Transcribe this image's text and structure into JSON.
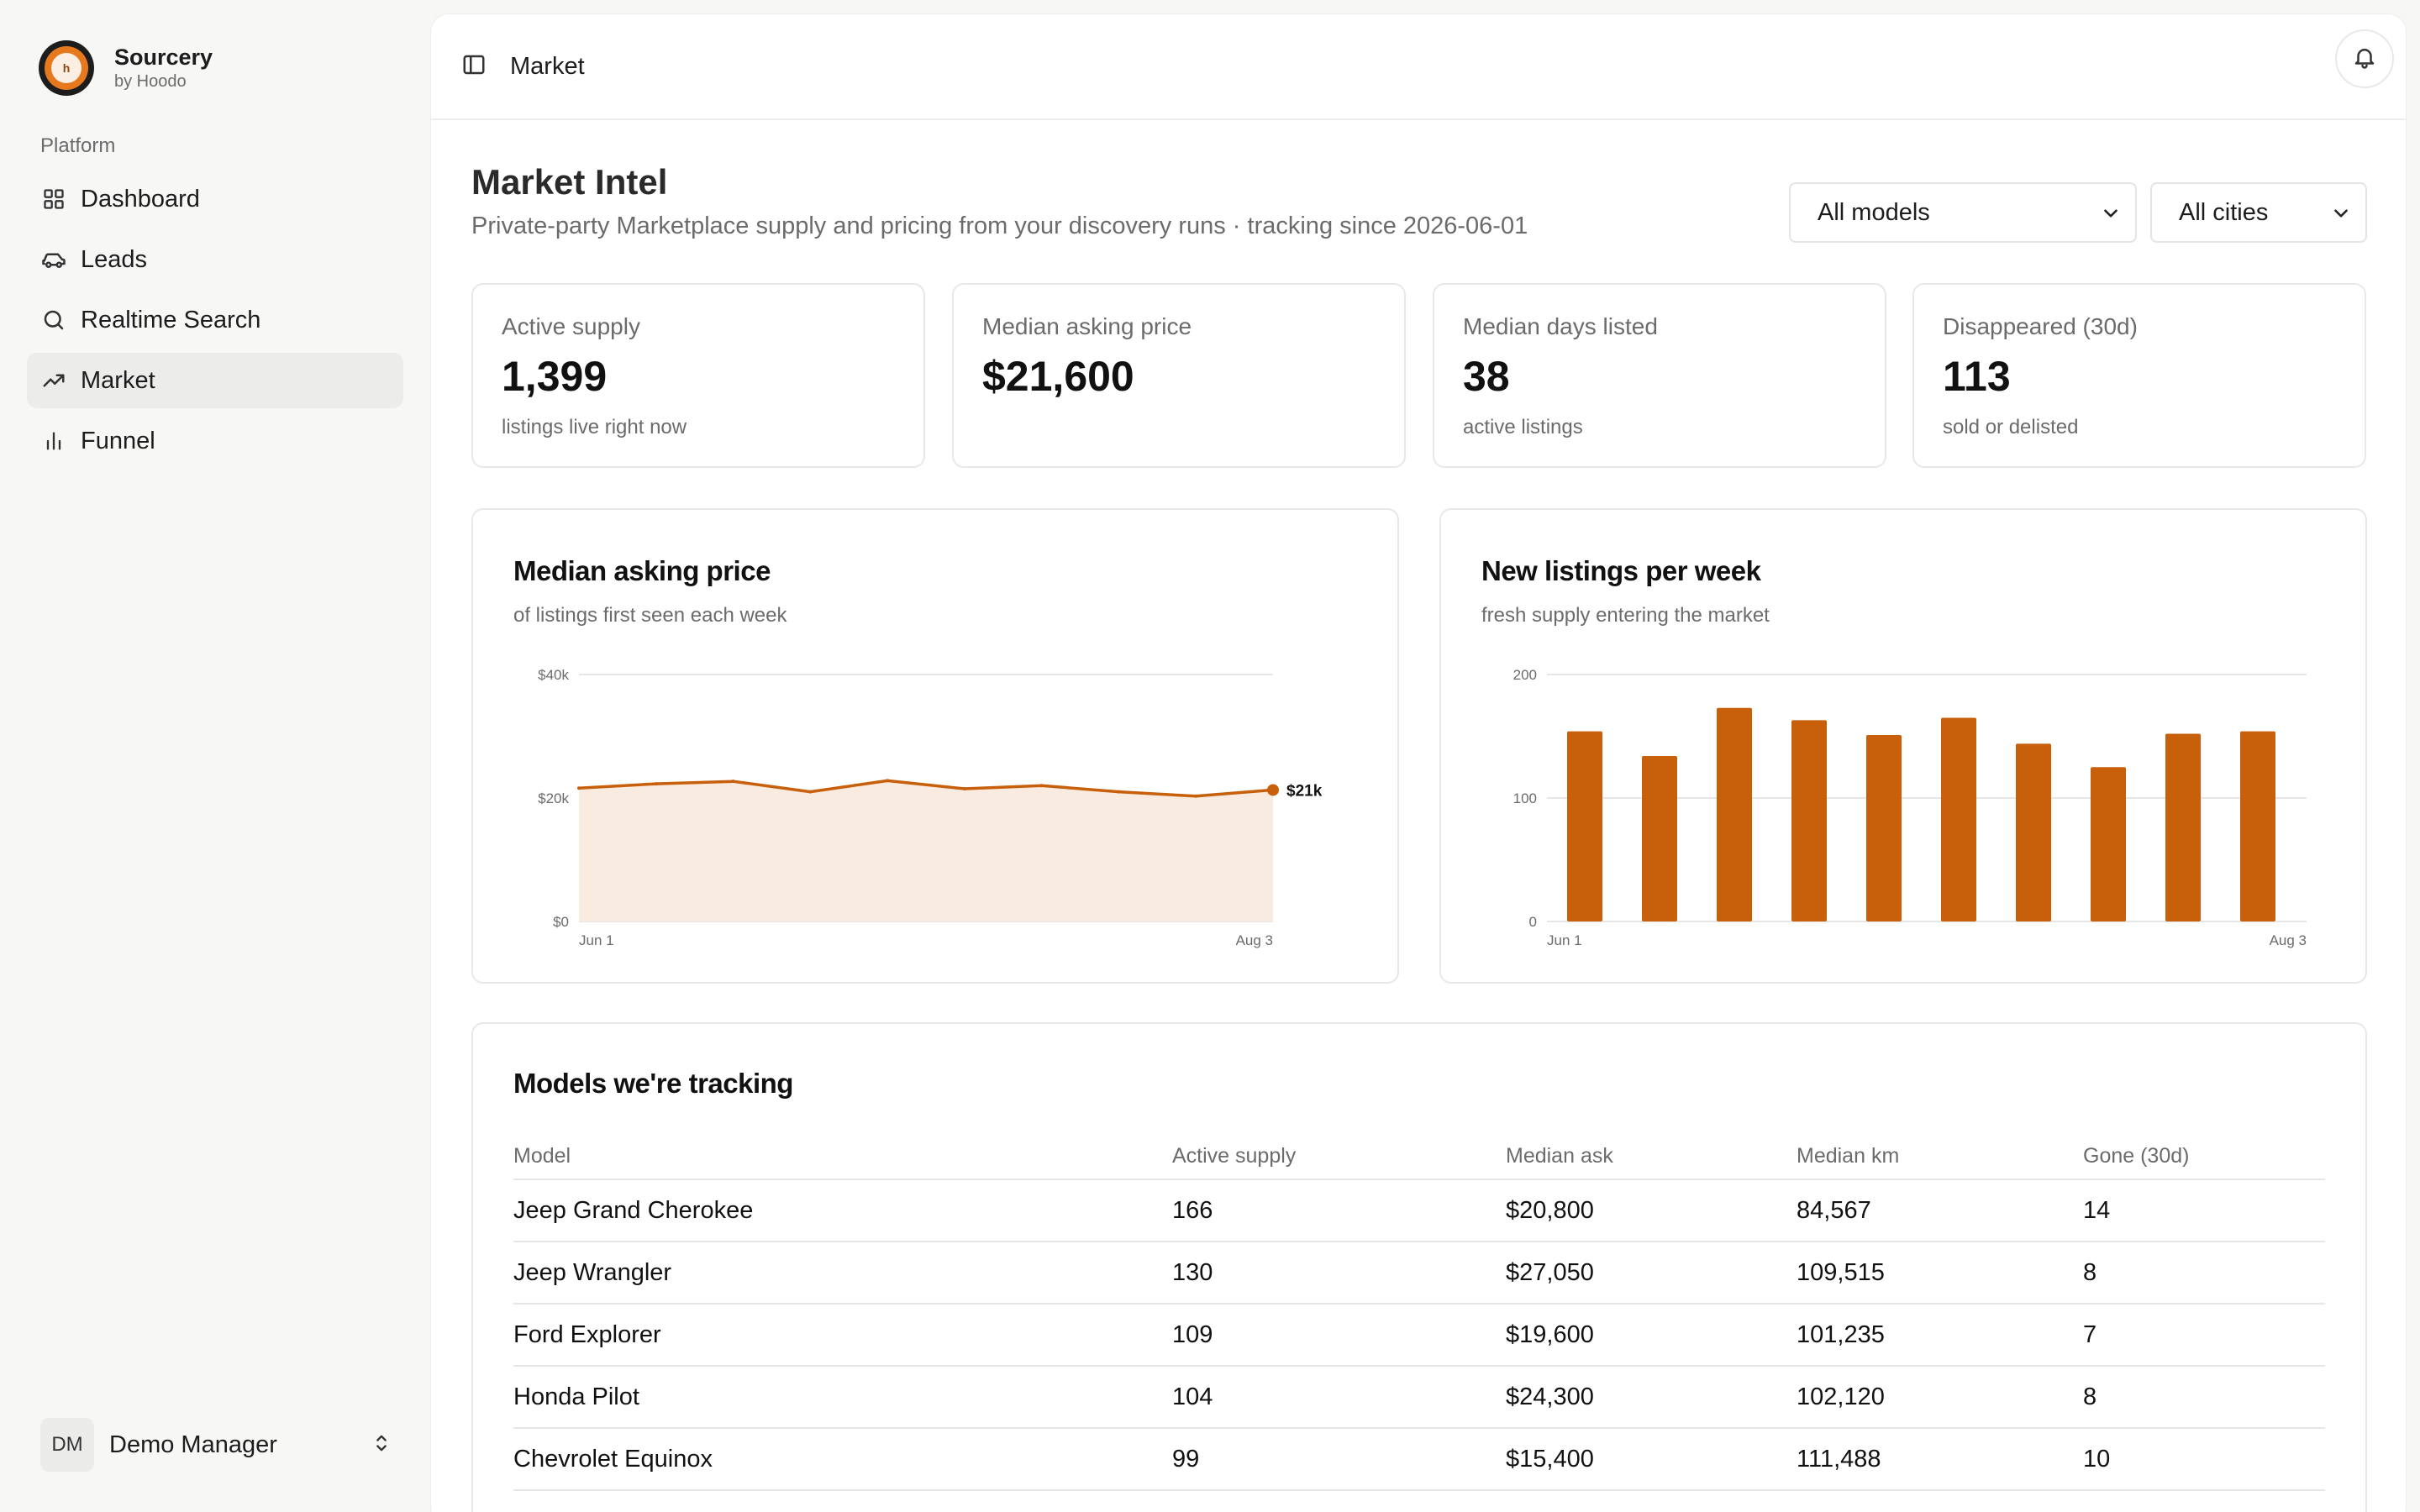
{
  "brand": {
    "name": "Sourcery",
    "sub": "by Hoodo",
    "logo_glyph": "h"
  },
  "sidebar": {
    "section_label": "Platform",
    "items": [
      {
        "label": "Dashboard",
        "icon": "grid-icon"
      },
      {
        "label": "Leads",
        "icon": "car-icon"
      },
      {
        "label": "Realtime Search",
        "icon": "search-icon"
      },
      {
        "label": "Market",
        "icon": "trending-up-icon",
        "active": true
      },
      {
        "label": "Funnel",
        "icon": "bar-chart-icon"
      }
    ],
    "user": {
      "initials": "DM",
      "name": "Demo Manager"
    }
  },
  "topbar": {
    "title": "Market"
  },
  "page": {
    "title": "Market Intel",
    "subtitle": "Private-party Marketplace supply and pricing from your discovery runs · tracking since 2026-06-01",
    "filters": {
      "model": "All models",
      "city": "All cities"
    }
  },
  "kpis": [
    {
      "label": "Active supply",
      "value": "1,399",
      "note": "listings live right now"
    },
    {
      "label": "Median asking price",
      "value": "$21,600",
      "note": ""
    },
    {
      "label": "Median days listed",
      "value": "38",
      "note": "active listings"
    },
    {
      "label": "Disappeared (30d)",
      "value": "113",
      "note": "sold or delisted"
    }
  ],
  "charts": {
    "price": {
      "title": "Median asking price",
      "subtitle": "of listings first seen each week",
      "end_label": "$21k"
    },
    "listings": {
      "title": "New listings per week",
      "subtitle": "fresh supply entering the market"
    }
  },
  "chart_data": [
    {
      "type": "area",
      "title": "Median asking price",
      "subtitle": "of listings first seen each week",
      "x_tick_labels": [
        "Jun 1",
        "Aug 3"
      ],
      "y_tick_labels": [
        "$40k",
        "$20k",
        "$0"
      ],
      "ylim": [
        0,
        40000
      ],
      "values": [
        21600,
        22300,
        22700,
        21000,
        22800,
        21500,
        22000,
        21000,
        20300,
        21300
      ],
      "color": "#c85f0a",
      "grid": true
    },
    {
      "type": "bar",
      "title": "New listings per week",
      "subtitle": "fresh supply entering the market",
      "x_tick_labels": [
        "Jun 1",
        "Aug 3"
      ],
      "y_tick_labels": [
        "200",
        "100",
        "0"
      ],
      "ylim": [
        0,
        200
      ],
      "values": [
        154,
        134,
        173,
        163,
        151,
        165,
        144,
        125,
        152,
        154
      ],
      "color": "#c85f0a",
      "grid": true
    }
  ],
  "table": {
    "title": "Models we're tracking",
    "columns": [
      "Model",
      "Active supply",
      "Median ask",
      "Median km",
      "Gone (30d)"
    ],
    "rows": [
      [
        "Jeep Grand Cherokee",
        "166",
        "$20,800",
        "84,567",
        "14"
      ],
      [
        "Jeep Wrangler",
        "130",
        "$27,050",
        "109,515",
        "8"
      ],
      [
        "Ford Explorer",
        "109",
        "$19,600",
        "101,235",
        "7"
      ],
      [
        "Honda Pilot",
        "104",
        "$24,300",
        "102,120",
        "8"
      ],
      [
        "Chevrolet Equinox",
        "99",
        "$15,400",
        "111,488",
        "10"
      ]
    ]
  }
}
